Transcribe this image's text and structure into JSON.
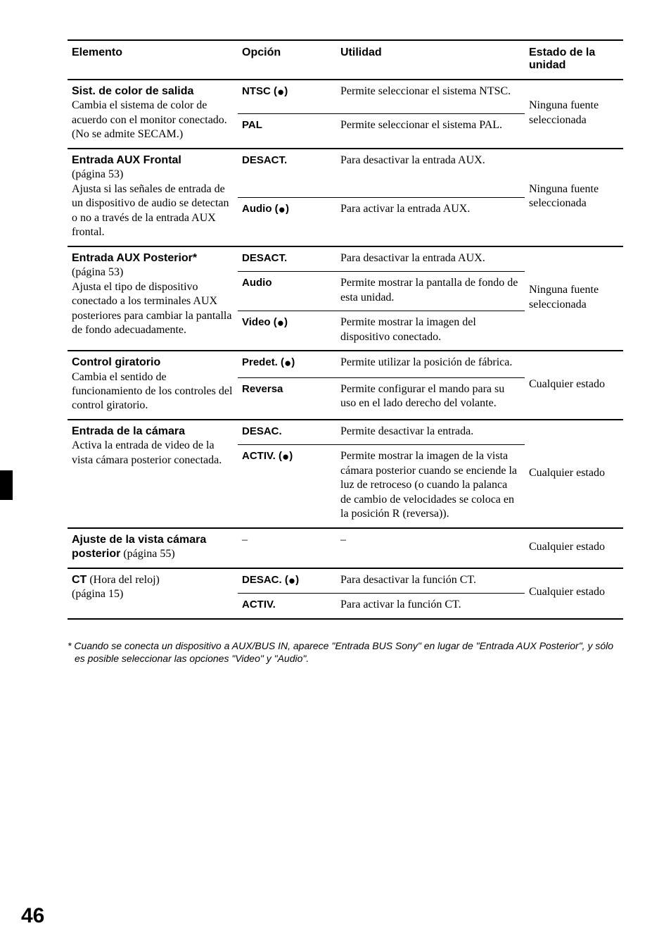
{
  "headers": {
    "elemento": "Elemento",
    "opcion": "Opción",
    "utilidad": "Utilidad",
    "estado": "Estado de la unidad"
  },
  "rows": {
    "sist_color": {
      "title": "Sist. de color de salida",
      "desc": "Cambia el sistema de color de acuerdo con el monitor conectado.\n(No se admite SECAM.)",
      "opt1": "NTSC (",
      "opt1_dot": "●",
      "opt1_close": ")",
      "util1": "Permite seleccionar el sistema NTSC.",
      "opt2": "PAL",
      "util2": "Permite seleccionar el sistema PAL.",
      "estado": "Ninguna fuente seleccionada"
    },
    "aux_frontal": {
      "title": "Entrada AUX Frontal",
      "desc1": "(página 53)",
      "desc2": "Ajusta si las señales de entrada de un dispositivo de audio se detectan o no a través de la entrada AUX frontal.",
      "opt1": "DESACT.",
      "util1": "Para desactivar la entrada AUX.",
      "opt2": "Audio (",
      "opt2_dot": "●",
      "opt2_close": ")",
      "util2": "Para activar la entrada AUX.",
      "estado": "Ninguna fuente seleccionada"
    },
    "aux_posterior": {
      "title": "Entrada AUX Posterior*",
      "desc1": "(página 53)",
      "desc2": "Ajusta el tipo de dispositivo conectado a los terminales AUX posteriores para cambiar la pantalla de fondo adecuadamente.",
      "opt1": "DESACT.",
      "util1": "Para desactivar la entrada AUX.",
      "opt2": "Audio",
      "util2": "Permite mostrar la pantalla de fondo de esta unidad.",
      "opt3": "Video (",
      "opt3_dot": "●",
      "opt3_close": ")",
      "util3": "Permite mostrar la imagen del dispositivo conectado.",
      "estado": "Ninguna fuente seleccionada"
    },
    "control_gir": {
      "title": "Control giratorio",
      "desc": "Cambia el sentido de funcionamiento de los controles del control giratorio.",
      "opt1": "Predet. (",
      "opt1_dot": "●",
      "opt1_close": ")",
      "util1": "Permite utilizar la posición de fábrica.",
      "opt2": "Reversa",
      "util2": "Permite configurar el mando para su uso en el lado derecho del volante.",
      "estado": "Cualquier estado"
    },
    "camara": {
      "title": "Entrada de la cámara",
      "desc": "Activa la entrada de video de la vista cámara posterior conectada.",
      "opt1": "DESAC.",
      "util1": "Permite desactivar la entrada.",
      "opt2": "ACTIV. (",
      "opt2_dot": "●",
      "opt2_close": ")",
      "util2": "Permite mostrar la imagen de la vista cámara posterior cuando se enciende la luz de retroceso (o cuando la palanca de cambio de velocidades se coloca en la posición R (reversa)).",
      "estado": "Cualquier estado"
    },
    "vista_camara": {
      "title": "Ajuste de la vista cámara posterior",
      "title_page": " (página 55)",
      "opt": "–",
      "util": "–",
      "estado": "Cualquier estado"
    },
    "ct": {
      "title": "CT",
      "title_after": " (Hora del reloj)",
      "desc": "(página 15)",
      "opt1": "DESAC. (",
      "opt1_dot": "●",
      "opt1_close": ")",
      "util1": "Para desactivar la función CT.",
      "opt2": "ACTIV.",
      "util2": "Para activar la función CT.",
      "estado": "Cualquier estado"
    }
  },
  "footnote": "* Cuando se conecta un dispositivo a AUX/BUS IN, aparece \"Entrada BUS Sony\" en lugar de \"Entrada AUX Posterior\", y sólo es posible seleccionar las opciones \"Video\" y \"Audio\".",
  "page_number": "46"
}
